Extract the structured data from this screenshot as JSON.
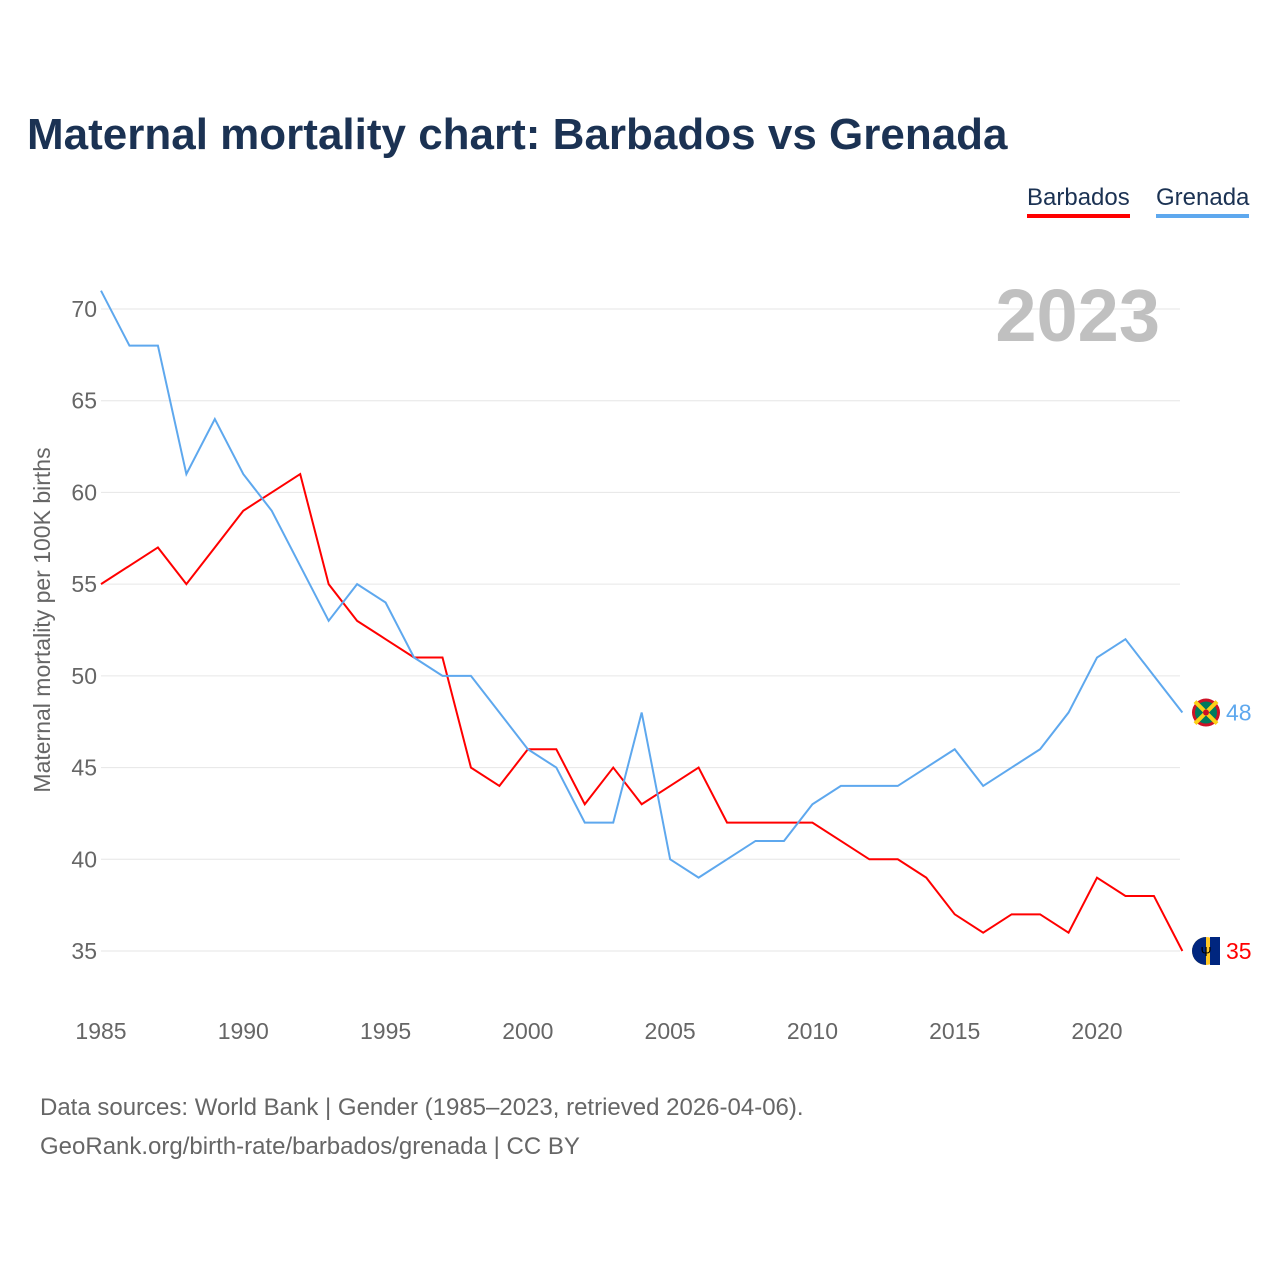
{
  "title": "Maternal mortality chart: Barbados vs Grenada",
  "legend": [
    "Barbados",
    "Grenada"
  ],
  "footer": {
    "line1": "Data sources: World Bank | Gender (1985–2023, retrieved 2026-04-06).",
    "line2": "GeoRank.org/birth-rate/barbados/grenada | CC BY"
  },
  "colors": {
    "Barbados": "#ff0000",
    "Grenada": "#5ea8ee",
    "title": "#1b3253"
  },
  "chart_data": {
    "type": "line",
    "title": "Maternal mortality chart: Barbados vs Grenada",
    "year_label": "2023",
    "xlabel": "",
    "ylabel": "Maternal mortality per 100K births",
    "xlim": [
      1985,
      2023
    ],
    "ylim": [
      33,
      71
    ],
    "xticks": [
      1985,
      1990,
      1995,
      2000,
      2005,
      2010,
      2015,
      2020
    ],
    "yticks": [
      35,
      40,
      45,
      50,
      55,
      60,
      65,
      70
    ],
    "grid": true,
    "legend_position": "top-right",
    "x": [
      1985,
      1986,
      1987,
      1988,
      1989,
      1990,
      1991,
      1992,
      1993,
      1994,
      1995,
      1996,
      1997,
      1998,
      1999,
      2000,
      2001,
      2002,
      2003,
      2004,
      2005,
      2006,
      2007,
      2008,
      2009,
      2010,
      2011,
      2012,
      2013,
      2014,
      2015,
      2016,
      2017,
      2018,
      2019,
      2020,
      2021,
      2022,
      2023
    ],
    "series": [
      {
        "name": "Barbados",
        "end_label": "35",
        "values": [
          55,
          56,
          57,
          55,
          57,
          59,
          60,
          61,
          55,
          53,
          52,
          51,
          51,
          45,
          44,
          46,
          46,
          43,
          45,
          43,
          44,
          45,
          42,
          42,
          42,
          42,
          41,
          40,
          40,
          39,
          37,
          36,
          37,
          37,
          36,
          39,
          38,
          38,
          35
        ]
      },
      {
        "name": "Grenada",
        "end_label": "48",
        "values": [
          71,
          68,
          68,
          61,
          64,
          61,
          59,
          56,
          53,
          55,
          54,
          51,
          50,
          50,
          48,
          46,
          45,
          42,
          42,
          48,
          40,
          39,
          40,
          41,
          41,
          43,
          44,
          44,
          44,
          45,
          46,
          44,
          45,
          46,
          48,
          51,
          52,
          50,
          48
        ]
      }
    ]
  }
}
